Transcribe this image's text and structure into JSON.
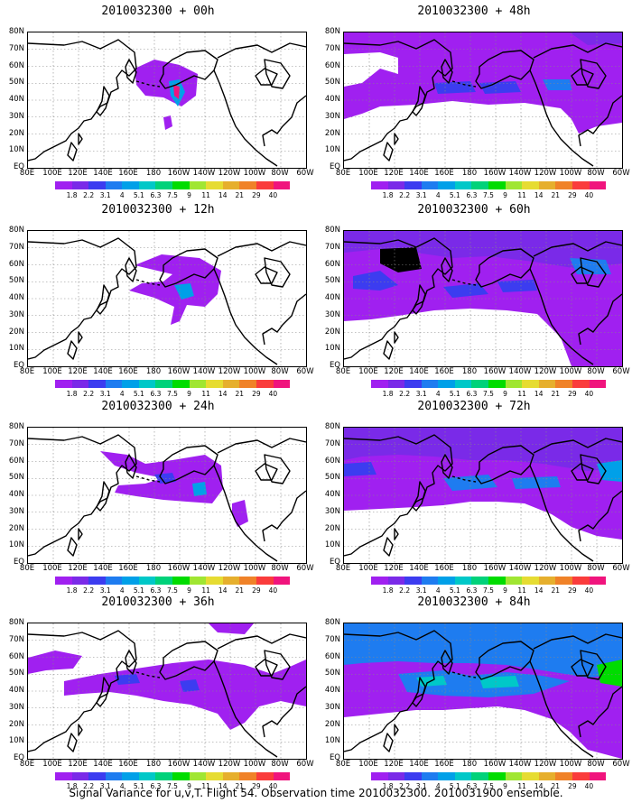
{
  "caption": "Signal Variance for u,v,T. Flight 54. Observation time 2010032300. 2010031900 ensemble.",
  "lat_labels": [
    "80N",
    "70N",
    "60N",
    "50N",
    "40N",
    "30N",
    "20N",
    "10N",
    "EQ"
  ],
  "lon_labels": [
    "80E",
    "100E",
    "120E",
    "140E",
    "160E",
    "180",
    "160W",
    "140W",
    "120W",
    "100W",
    "80W",
    "60W"
  ],
  "colorbar": {
    "levels": [
      "1.8",
      "2.2",
      "3.1",
      "4",
      "5.1",
      "6.3",
      "7.5",
      "9",
      "11",
      "14",
      "21",
      "29",
      "40"
    ],
    "colors": [
      "#a020f0",
      "#7a2ae8",
      "#3c3cf0",
      "#1e7cf0",
      "#00a0e8",
      "#00c8c8",
      "#00d27a",
      "#00dc00",
      "#a0e632",
      "#e6dc32",
      "#e6af2d",
      "#f08228",
      "#fa3c3c",
      "#f0147d"
    ]
  },
  "panels": [
    {
      "title": "2010032300 + 00h"
    },
    {
      "title": "2010032300 + 12h"
    },
    {
      "title": "2010032300 + 24h"
    },
    {
      "title": "2010032300 + 36h"
    },
    {
      "title": "2010032300 + 48h"
    },
    {
      "title": "2010032300 + 60h"
    },
    {
      "title": "2010032300 + 72h"
    },
    {
      "title": "2010032300 + 84h"
    }
  ]
}
